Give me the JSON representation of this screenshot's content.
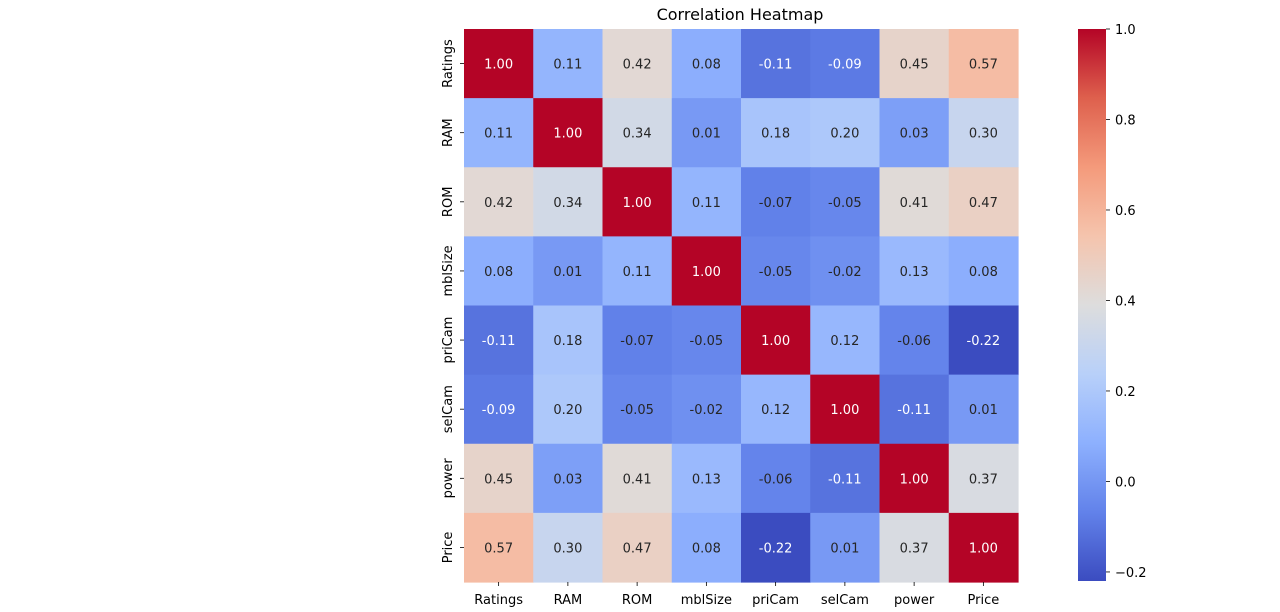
{
  "chart_data": {
    "type": "heatmap",
    "title": "Correlation Heatmap",
    "xlabel": "",
    "ylabel": "",
    "x_categories": [
      "Ratings",
      "RAM",
      "ROM",
      "mblSize",
      "priCam",
      "selCam",
      "power",
      "Price"
    ],
    "y_categories": [
      "Ratings",
      "RAM",
      "ROM",
      "mblSize",
      "priCam",
      "selCam",
      "power",
      "Price"
    ],
    "values": [
      [
        1.0,
        0.11,
        0.42,
        0.08,
        -0.11,
        -0.09,
        0.45,
        0.57
      ],
      [
        0.11,
        1.0,
        0.34,
        0.01,
        0.18,
        0.2,
        0.03,
        0.3
      ],
      [
        0.42,
        0.34,
        1.0,
        0.11,
        -0.07,
        -0.05,
        0.41,
        0.47
      ],
      [
        0.08,
        0.01,
        0.11,
        1.0,
        -0.05,
        -0.02,
        0.13,
        0.08
      ],
      [
        -0.11,
        0.18,
        -0.07,
        -0.05,
        1.0,
        0.12,
        -0.06,
        -0.22
      ],
      [
        -0.09,
        0.2,
        -0.05,
        -0.02,
        0.12,
        1.0,
        -0.11,
        0.01
      ],
      [
        0.45,
        0.03,
        0.41,
        0.13,
        -0.06,
        -0.11,
        1.0,
        0.37
      ],
      [
        0.57,
        0.3,
        0.47,
        0.08,
        -0.22,
        0.01,
        0.37,
        1.0
      ]
    ],
    "annotation_format": "2 decimals",
    "colormap": "coolwarm",
    "colorbar": {
      "range": [
        -0.22,
        1.0
      ],
      "ticks": [
        -0.2,
        0.0,
        0.2,
        0.4,
        0.6,
        0.8,
        1.0
      ],
      "tick_labels": [
        "−0.2",
        "0.0",
        "0.2",
        "0.4",
        "0.6",
        "0.8",
        "1.0"
      ],
      "placement": "right"
    },
    "grid": false,
    "legend": "none"
  }
}
